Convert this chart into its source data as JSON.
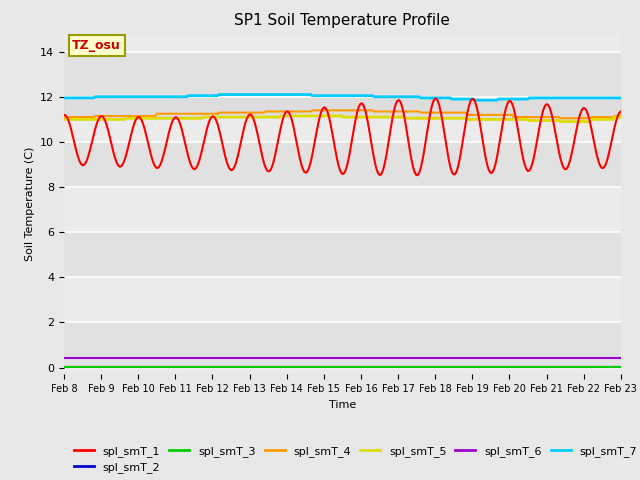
{
  "title": "SP1 Soil Temperature Profile",
  "xlabel": "Time",
  "ylabel": "Soil Temperature (C)",
  "yticks": [
    0,
    2,
    4,
    6,
    8,
    10,
    12,
    14
  ],
  "annotation_text": "TZ_osu",
  "annotation_color": "#cc0000",
  "annotation_bg": "#ffffcc",
  "annotation_border": "#999900",
  "fig_bg": "#e8e8e8",
  "plot_bg": "#ebebeb",
  "band_color": "#d8d8d8",
  "lines": {
    "spl_smT_1": {
      "color": "#ff0000",
      "lw": 1.5
    },
    "spl_smT_2": {
      "color": "#0000cc",
      "lw": 1.5
    },
    "spl_smT_3": {
      "color": "#00cc00",
      "lw": 1.5
    },
    "spl_smT_4": {
      "color": "#ff9900",
      "lw": 1.5
    },
    "spl_smT_5": {
      "color": "#dddd00",
      "lw": 2.0
    },
    "spl_smT_6": {
      "color": "#9900cc",
      "lw": 1.5
    },
    "spl_smT_7": {
      "color": "#00ccff",
      "lw": 2.0
    }
  }
}
